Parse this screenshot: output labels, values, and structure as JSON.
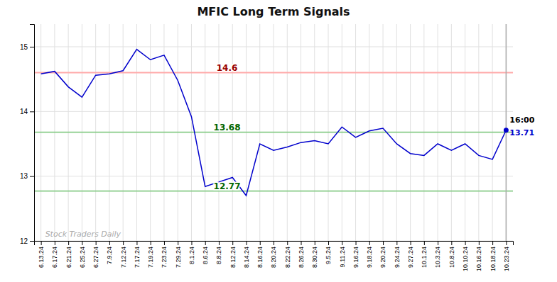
{
  "chart_data": {
    "type": "line",
    "title": "MFIC Long Term Signals",
    "categories": [
      "6.13.24",
      "6.17.24",
      "6.21.24",
      "6.25.24",
      "6.27.24",
      "7.9.24",
      "7.12.24",
      "7.17.24",
      "7.19.24",
      "7.23.24",
      "7.29.24",
      "8.1.24",
      "8.6.24",
      "8.8.24",
      "8.12.24",
      "8.14.24",
      "8.16.24",
      "8.20.24",
      "8.22.24",
      "8.26.24",
      "8.30.24",
      "9.5.24",
      "9.11.24",
      "9.16.24",
      "9.18.24",
      "9.20.24",
      "9.24.24",
      "9.27.24",
      "10.1.24",
      "10.3.24",
      "10.8.24",
      "10.10.24",
      "10.16.24",
      "10.18.24",
      "10.23.24"
    ],
    "values": [
      14.58,
      14.62,
      14.38,
      14.22,
      14.56,
      14.58,
      14.63,
      14.96,
      14.8,
      14.87,
      14.48,
      13.92,
      12.84,
      12.91,
      12.98,
      12.7,
      13.5,
      13.4,
      13.45,
      13.52,
      13.55,
      13.5,
      13.76,
      13.6,
      13.7,
      13.74,
      13.5,
      13.35,
      13.32,
      13.5,
      13.4,
      13.5,
      13.32,
      13.26,
      13.71
    ],
    "color": "#0000cc",
    "ylim": [
      12.0,
      15.35
    ],
    "yticks": [
      12,
      13,
      14,
      15
    ],
    "grid": true,
    "reference_lines": [
      {
        "value": 14.6,
        "label": "14.6",
        "color": "#ffaaaa",
        "label_color": "#990000"
      },
      {
        "value": 13.68,
        "label": "13.68",
        "color": "#88cc88",
        "label_color": "#006600"
      },
      {
        "value": 12.77,
        "label": "12.77",
        "color": "#88cc88",
        "label_color": "#006600"
      }
    ],
    "annotations": [
      {
        "text": "16:00",
        "x": "10.23.24"
      },
      {
        "text": "13.71",
        "x": "10.23.24",
        "y": 13.71
      }
    ],
    "watermark": "Stock Traders Daily"
  }
}
